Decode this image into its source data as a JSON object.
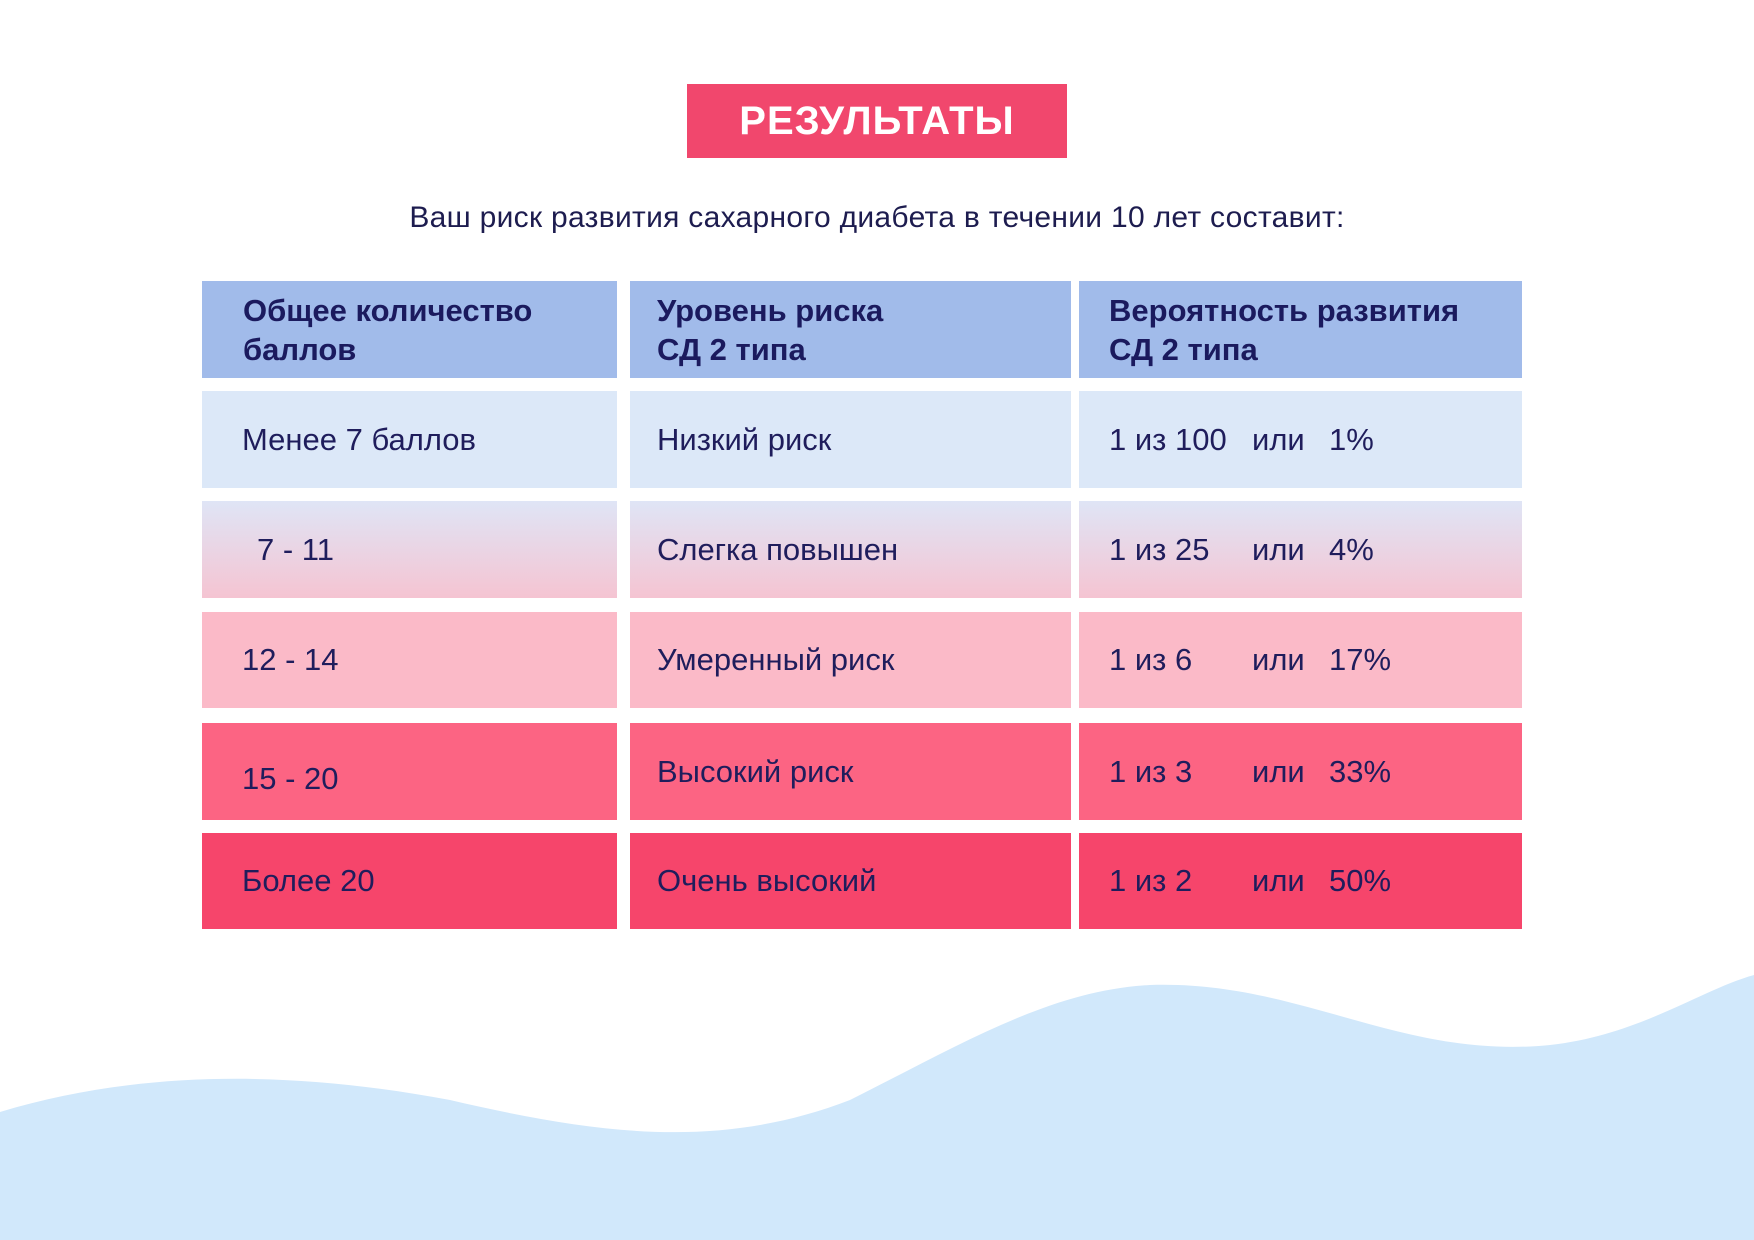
{
  "header": {
    "title": "РЕЗУЛЬТАТЫ",
    "subtitle": "Ваш риск развития сахарного диабета в течении 10 лет составит:"
  },
  "table": {
    "columns": [
      "Общее количество\nбаллов",
      "Уровень риска\nСД 2 типа",
      "Вероятность развития\nСД 2 типа"
    ],
    "rows": [
      {
        "score": "Менее 7 баллов",
        "level": "Низкий риск",
        "odds": "1 из 100",
        "or": "или",
        "percent": "1%"
      },
      {
        "score": "7 - 11",
        "level": "Слегка повышен",
        "odds": "1 из 25",
        "or": "или",
        "percent": "4%"
      },
      {
        "score": "12 - 14",
        "level": "Умеренный риск",
        "odds": "1 из 6",
        "or": "или",
        "percent": "17%"
      },
      {
        "score": "15 - 20",
        "level": "Высокий риск",
        "odds": "1 из 3",
        "or": "или",
        "percent": "33%"
      },
      {
        "score": "Более 20",
        "level": "Очень высокий",
        "odds": "1 из 2",
        "or": "или",
        "percent": "50%"
      }
    ]
  },
  "colors": {
    "accent": "#f1476d",
    "header_row": "#a1bbea",
    "row_low": "#dce8f8",
    "row_moderate": "#fbbac8",
    "row_high": "#fc6483",
    "row_very_high": "#f6456b",
    "wave": "#d1e8fb",
    "text": "#1b1a5e"
  }
}
